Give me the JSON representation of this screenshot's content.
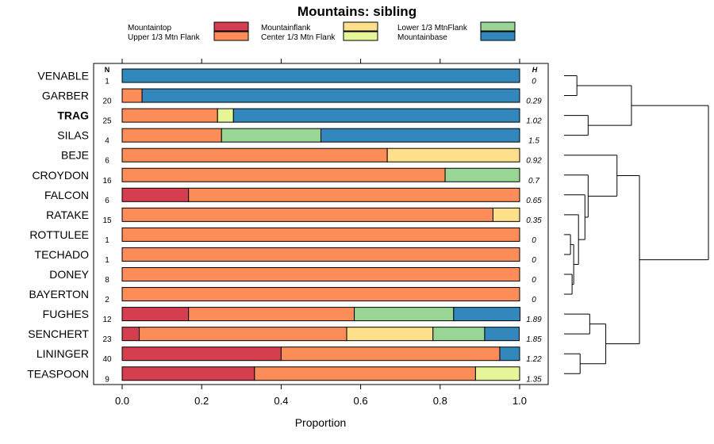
{
  "chart_data": {
    "type": "bar",
    "stacked": true,
    "orientation": "horizontal",
    "title": "Mountains: sibling",
    "xlabel": "Proportion",
    "xlim": [
      0,
      1
    ],
    "xticks": [
      "0.0",
      "0.2",
      "0.4",
      "0.6",
      "0.8",
      "1.0"
    ],
    "n_header": "N",
    "h_header": "H",
    "highlighted_category": "TRAG",
    "legend": [
      {
        "name": "Mountaintop",
        "color": "#d53e4f"
      },
      {
        "name": "Upper 1/3 Mtn Flank",
        "color": "#fc8d59"
      },
      {
        "name": "Mountainflank",
        "color": "#fee08b"
      },
      {
        "name": "Center 1/3 Mtn Flank",
        "color": "#e6f598"
      },
      {
        "name": "Lower 1/3 MtnFlank",
        "color": "#99d594"
      },
      {
        "name": "Mountainbase",
        "color": "#3288bd"
      }
    ],
    "categories": [
      "VENABLE",
      "GARBER",
      "TRAG",
      "SILAS",
      "BEJE",
      "CROYDON",
      "FALCON",
      "RATAKE",
      "ROTTULEE",
      "TECHADO",
      "DONEY",
      "BAYERTON",
      "FUGHES",
      "SENCHERT",
      "LININGER",
      "TEASPOON"
    ],
    "n": [
      "1",
      "20",
      "25",
      "4",
      "6",
      "16",
      "6",
      "15",
      "1",
      "1",
      "8",
      "2",
      "12",
      "23",
      "40",
      "9"
    ],
    "h": [
      "0",
      "0.29",
      "1.02",
      "1.5",
      "0.92",
      "0.7",
      "0.65",
      "0.35",
      "0",
      "0",
      "0",
      "0",
      "1.89",
      "1.85",
      "1.22",
      "1.35"
    ],
    "series": [
      {
        "name": "Mountaintop",
        "values": [
          0,
          0,
          0,
          0,
          0,
          0,
          0.167,
          0,
          0,
          0,
          0,
          0,
          0.167,
          0.043,
          0.4,
          0.333
        ]
      },
      {
        "name": "Upper 1/3 Mtn Flank",
        "values": [
          0,
          0.05,
          0.24,
          0.25,
          0.667,
          0.8125,
          0.833,
          0.933,
          1,
          1,
          1,
          1,
          0.417,
          0.522,
          0.55,
          0.556
        ]
      },
      {
        "name": "Mountainflank",
        "values": [
          0,
          0,
          0,
          0,
          0.333,
          0,
          0,
          0.067,
          0,
          0,
          0,
          0,
          0,
          0.217,
          0,
          0
        ]
      },
      {
        "name": "Center 1/3 Mtn Flank",
        "values": [
          0,
          0,
          0.04,
          0,
          0,
          0,
          0,
          0,
          0,
          0,
          0,
          0,
          0,
          0,
          0,
          0.111
        ]
      },
      {
        "name": "Lower 1/3 MtnFlank",
        "values": [
          0,
          0,
          0,
          0.25,
          0,
          0.1875,
          0,
          0,
          0,
          0,
          0,
          0,
          0.25,
          0.13,
          0,
          0
        ]
      },
      {
        "name": "Mountainbase",
        "values": [
          1,
          0.95,
          0.72,
          0.5,
          0,
          0,
          0,
          0,
          0,
          0,
          0,
          0,
          0.167,
          0.087,
          0.05,
          0
        ]
      }
    ],
    "dendrogram": {
      "type": "hierarchical-clustering",
      "leaf_order": [
        "VENABLE",
        "GARBER",
        "TRAG",
        "SILAS",
        "BEJE",
        "CROYDON",
        "FALCON",
        "RATAKE",
        "ROTTULEE",
        "TECHADO",
        "DONEY",
        "BAYERTON",
        "FUGHES",
        "SENCHERT",
        "LININGER",
        "TEASPOON"
      ],
      "merges": [
        {
          "left": "leaf:0",
          "right": "leaf:1",
          "height": 0.08
        },
        {
          "left": "leaf:2",
          "right": "leaf:3",
          "height": 0.15
        },
        {
          "left": "leaf:8",
          "right": "leaf:9",
          "height": 0.04
        },
        {
          "left": "leaf:10",
          "right": "leaf:11",
          "height": 0.05
        },
        {
          "left": "node:2",
          "right": "node:3",
          "height": 0.06
        },
        {
          "left": "leaf:7",
          "right": "node:4",
          "height": 0.09
        },
        {
          "left": "leaf:6",
          "right": "node:5",
          "height": 0.13
        },
        {
          "left": "leaf:5",
          "right": "node:6",
          "height": 0.15
        },
        {
          "left": "leaf:4",
          "right": "node:7",
          "height": 0.33
        },
        {
          "left": "leaf:12",
          "right": "leaf:13",
          "height": 0.16
        },
        {
          "left": "leaf:14",
          "right": "leaf:15",
          "height": 0.1
        },
        {
          "left": "node:9",
          "right": "node:10",
          "height": 0.26
        },
        {
          "left": "node:0",
          "right": "node:1",
          "height": 0.42
        },
        {
          "left": "node:8",
          "right": "node:11",
          "height": 0.47
        },
        {
          "left": "node:12",
          "right": "node:13",
          "height": 0.9
        }
      ]
    }
  }
}
